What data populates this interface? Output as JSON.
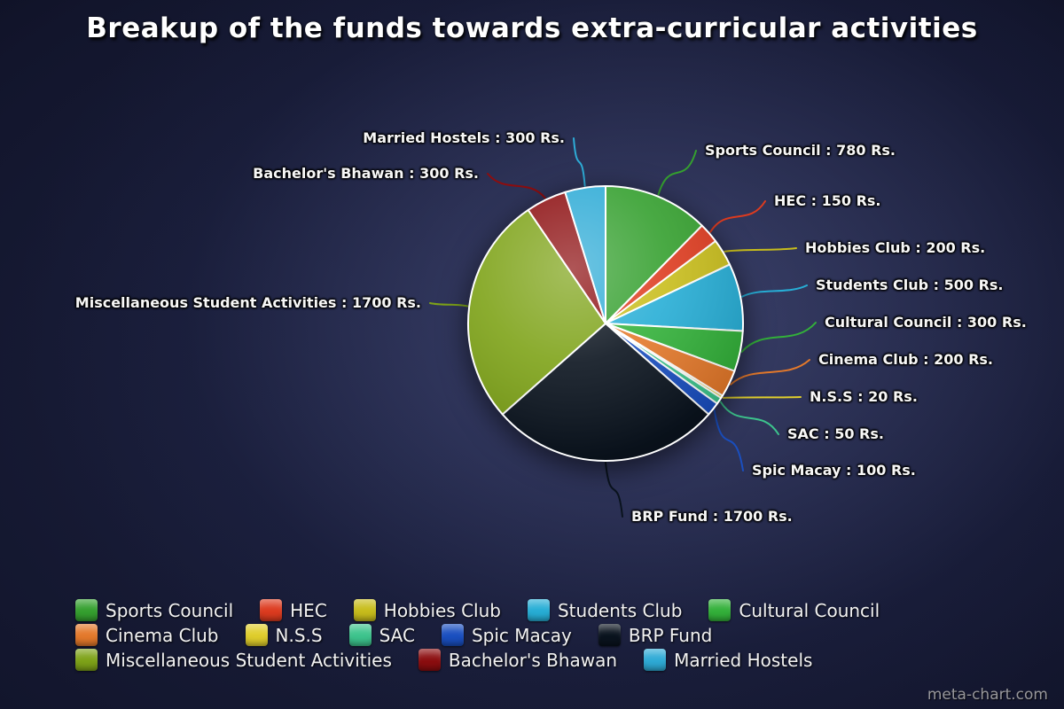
{
  "title": "Breakup of the funds towards extra-curricular activities",
  "watermark": "meta-chart.com",
  "chart_data": {
    "type": "pie",
    "unit": "Rs.",
    "total": 6300,
    "start_angle": "top",
    "direction": "clockwise",
    "legend_position": "bottom",
    "label_format": "{name} : {value} Rs.",
    "slices": [
      {
        "name": "Sports Council",
        "value": 780,
        "color": "#35a02f"
      },
      {
        "name": "HEC",
        "value": 150,
        "color": "#dd3b1f"
      },
      {
        "name": "Hobbies Club",
        "value": 200,
        "color": "#c8bd1c"
      },
      {
        "name": "Students Club",
        "value": 500,
        "color": "#27aed6"
      },
      {
        "name": "Cultural Council",
        "value": 300,
        "color": "#33b13a"
      },
      {
        "name": "Cinema Club",
        "value": 200,
        "color": "#e4792b"
      },
      {
        "name": "N.S.S",
        "value": 20,
        "color": "#e0ce2c"
      },
      {
        "name": "SAC",
        "value": 50,
        "color": "#3dc48d"
      },
      {
        "name": "Spic Macay",
        "value": 100,
        "color": "#1a4fc0"
      },
      {
        "name": "BRP Fund",
        "value": 1700,
        "color": "#0a131e"
      },
      {
        "name": "Miscellaneous Student Activities",
        "value": 1700,
        "color": "#7ea318"
      },
      {
        "name": "Bachelor's Bhawan",
        "value": 300,
        "color": "#8c0d0f"
      },
      {
        "name": "Married Hostels",
        "value": 300,
        "color": "#2eabd6"
      }
    ]
  }
}
